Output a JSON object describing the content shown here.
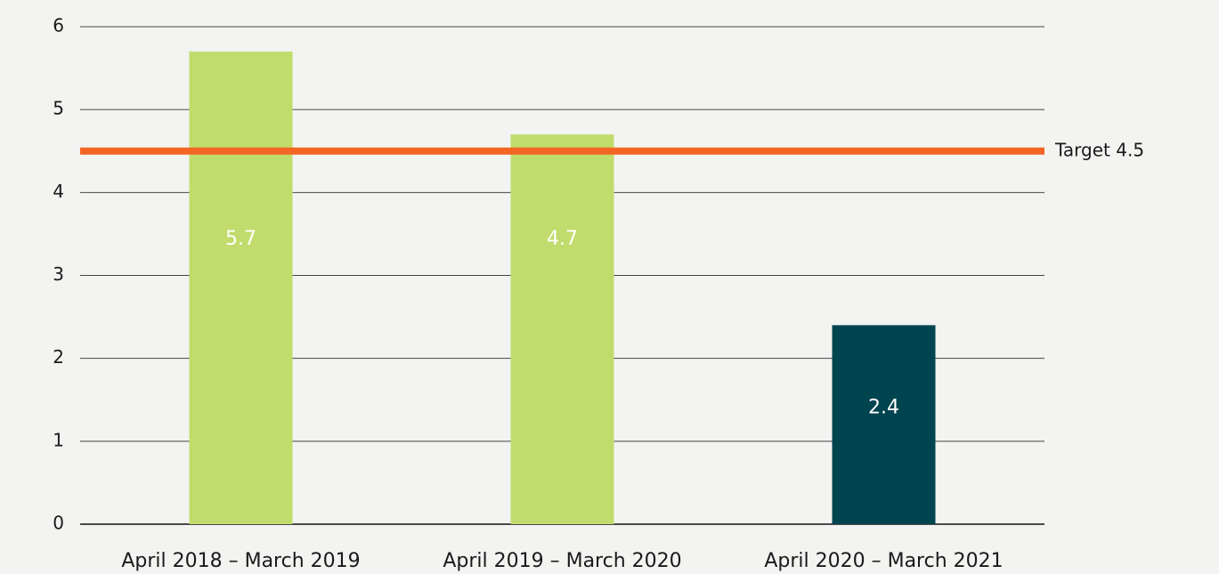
{
  "chart_data": {
    "type": "bar",
    "categories": [
      "April 2018 – March 2019",
      "April 2019 – March 2020",
      "April 2020 – March 2021"
    ],
    "values": [
      5.7,
      4.7,
      2.4
    ],
    "colors": [
      "#c0dc6c",
      "#c0dc6c",
      "#00444f"
    ],
    "ylim": [
      0,
      6
    ],
    "yticks": [
      0,
      1,
      2,
      3,
      4,
      5,
      6
    ],
    "grid": true,
    "target": {
      "value": 4.5,
      "label": "Target 4.5",
      "color": "#f26522"
    }
  }
}
